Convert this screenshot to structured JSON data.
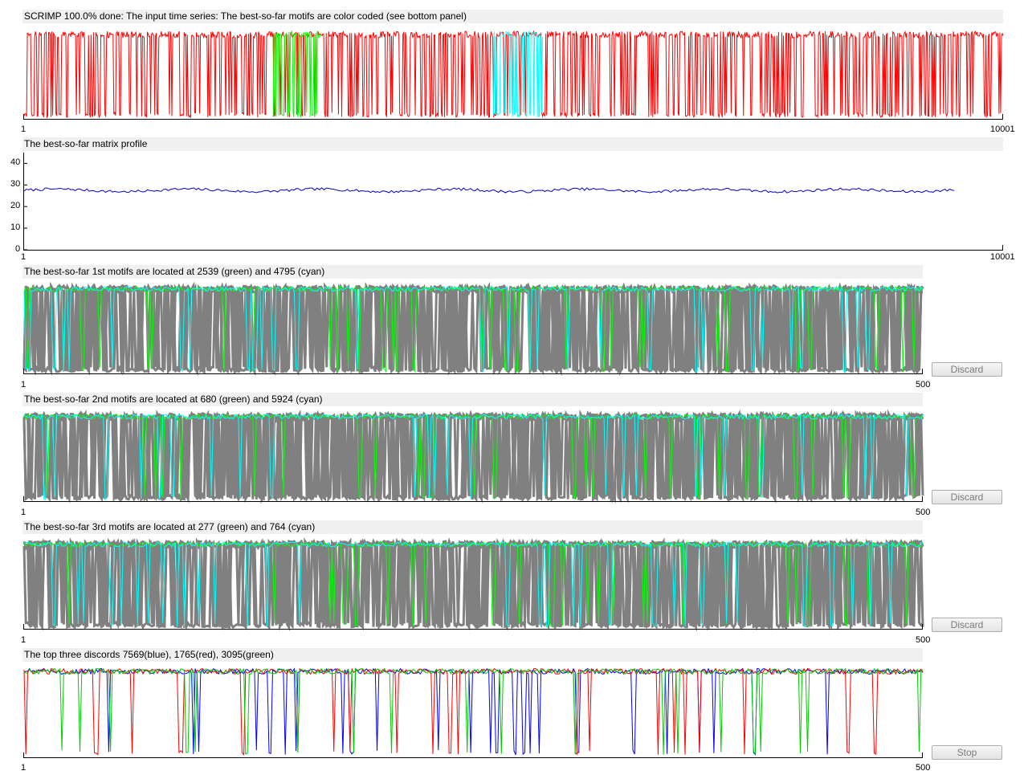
{
  "panels": {
    "ts": {
      "title": "SCRIMP 100.0% done: The input time series: The best-so-far motifs are color coded (see bottom panel)",
      "x_start": "1",
      "x_end": "10001"
    },
    "mp": {
      "title": "The best-so-far matrix profile",
      "x_start": "1",
      "x_end": "10001",
      "y_ticks": [
        "0",
        "10",
        "20",
        "30",
        "40"
      ]
    },
    "m1": {
      "title": "The best-so-far 1st motifs are located at 2539 (green) and 4795 (cyan)",
      "x_start": "1",
      "x_end": "500",
      "button": "Discard"
    },
    "m2": {
      "title": "The best-so-far 2nd motifs are located at 680 (green) and 5924 (cyan)",
      "x_start": "1",
      "x_end": "500",
      "button": "Discard"
    },
    "m3": {
      "title": "The best-so-far 3rd motifs are located at 277 (green) and 764 (cyan)",
      "x_start": "1",
      "x_end": "500",
      "button": "Discard"
    },
    "disc": {
      "title": "The top three discords 7569(blue), 1765(red), 3095(green)",
      "x_start": "1",
      "x_end": "500",
      "button": "Stop"
    }
  },
  "chart_data": [
    {
      "type": "line",
      "title": "SCRIMP 100.0% done: The input time series: The best-so-far motifs are color coded (see bottom panel)",
      "xlim": [
        1,
        10001
      ],
      "series": [
        {
          "color": "#ff0000",
          "role": "time series"
        },
        {
          "color": "#00ff00",
          "start": 2539,
          "length": 500
        },
        {
          "color": "#00ffff",
          "start": 4795,
          "length": 500
        }
      ]
    },
    {
      "type": "line",
      "title": "The best-so-far matrix profile",
      "xlim": [
        1,
        10001
      ],
      "ylim": [
        0,
        45
      ],
      "y_ticks": [
        0,
        10,
        20,
        30,
        40
      ],
      "series": [
        {
          "color": "#0000cc",
          "approx_level": 27.5,
          "x_range": [
            1,
            9502
          ]
        }
      ]
    },
    {
      "type": "line",
      "title": "The best-so-far 1st motifs are located at 2539 (green) and 4795 (cyan)",
      "xlim": [
        1,
        500
      ],
      "series": [
        {
          "color": "#808080",
          "role": "neighbors"
        },
        {
          "color": "#00ff00",
          "start": 2539
        },
        {
          "color": "#00ffff",
          "start": 4795
        }
      ]
    },
    {
      "type": "line",
      "title": "The best-so-far 2nd motifs are located at 680 (green) and 5924 (cyan)",
      "xlim": [
        1,
        500
      ],
      "series": [
        {
          "color": "#808080",
          "role": "neighbors"
        },
        {
          "color": "#00ff00",
          "start": 680
        },
        {
          "color": "#00ffff",
          "start": 5924
        }
      ]
    },
    {
      "type": "line",
      "title": "The best-so-far 3rd motifs are located at 277 (green) and 764 (cyan)",
      "xlim": [
        1,
        500
      ],
      "series": [
        {
          "color": "#808080",
          "role": "neighbors"
        },
        {
          "color": "#00ff00",
          "start": 277
        },
        {
          "color": "#00ffff",
          "start": 764
        }
      ]
    },
    {
      "type": "line",
      "title": "The top three discords 7569(blue), 1765(red), 3095(green)",
      "xlim": [
        1,
        500
      ],
      "series": [
        {
          "color": "#0000ff",
          "start": 7569
        },
        {
          "color": "#ff0000",
          "start": 1765
        },
        {
          "color": "#00cc00",
          "start": 3095
        }
      ]
    }
  ]
}
